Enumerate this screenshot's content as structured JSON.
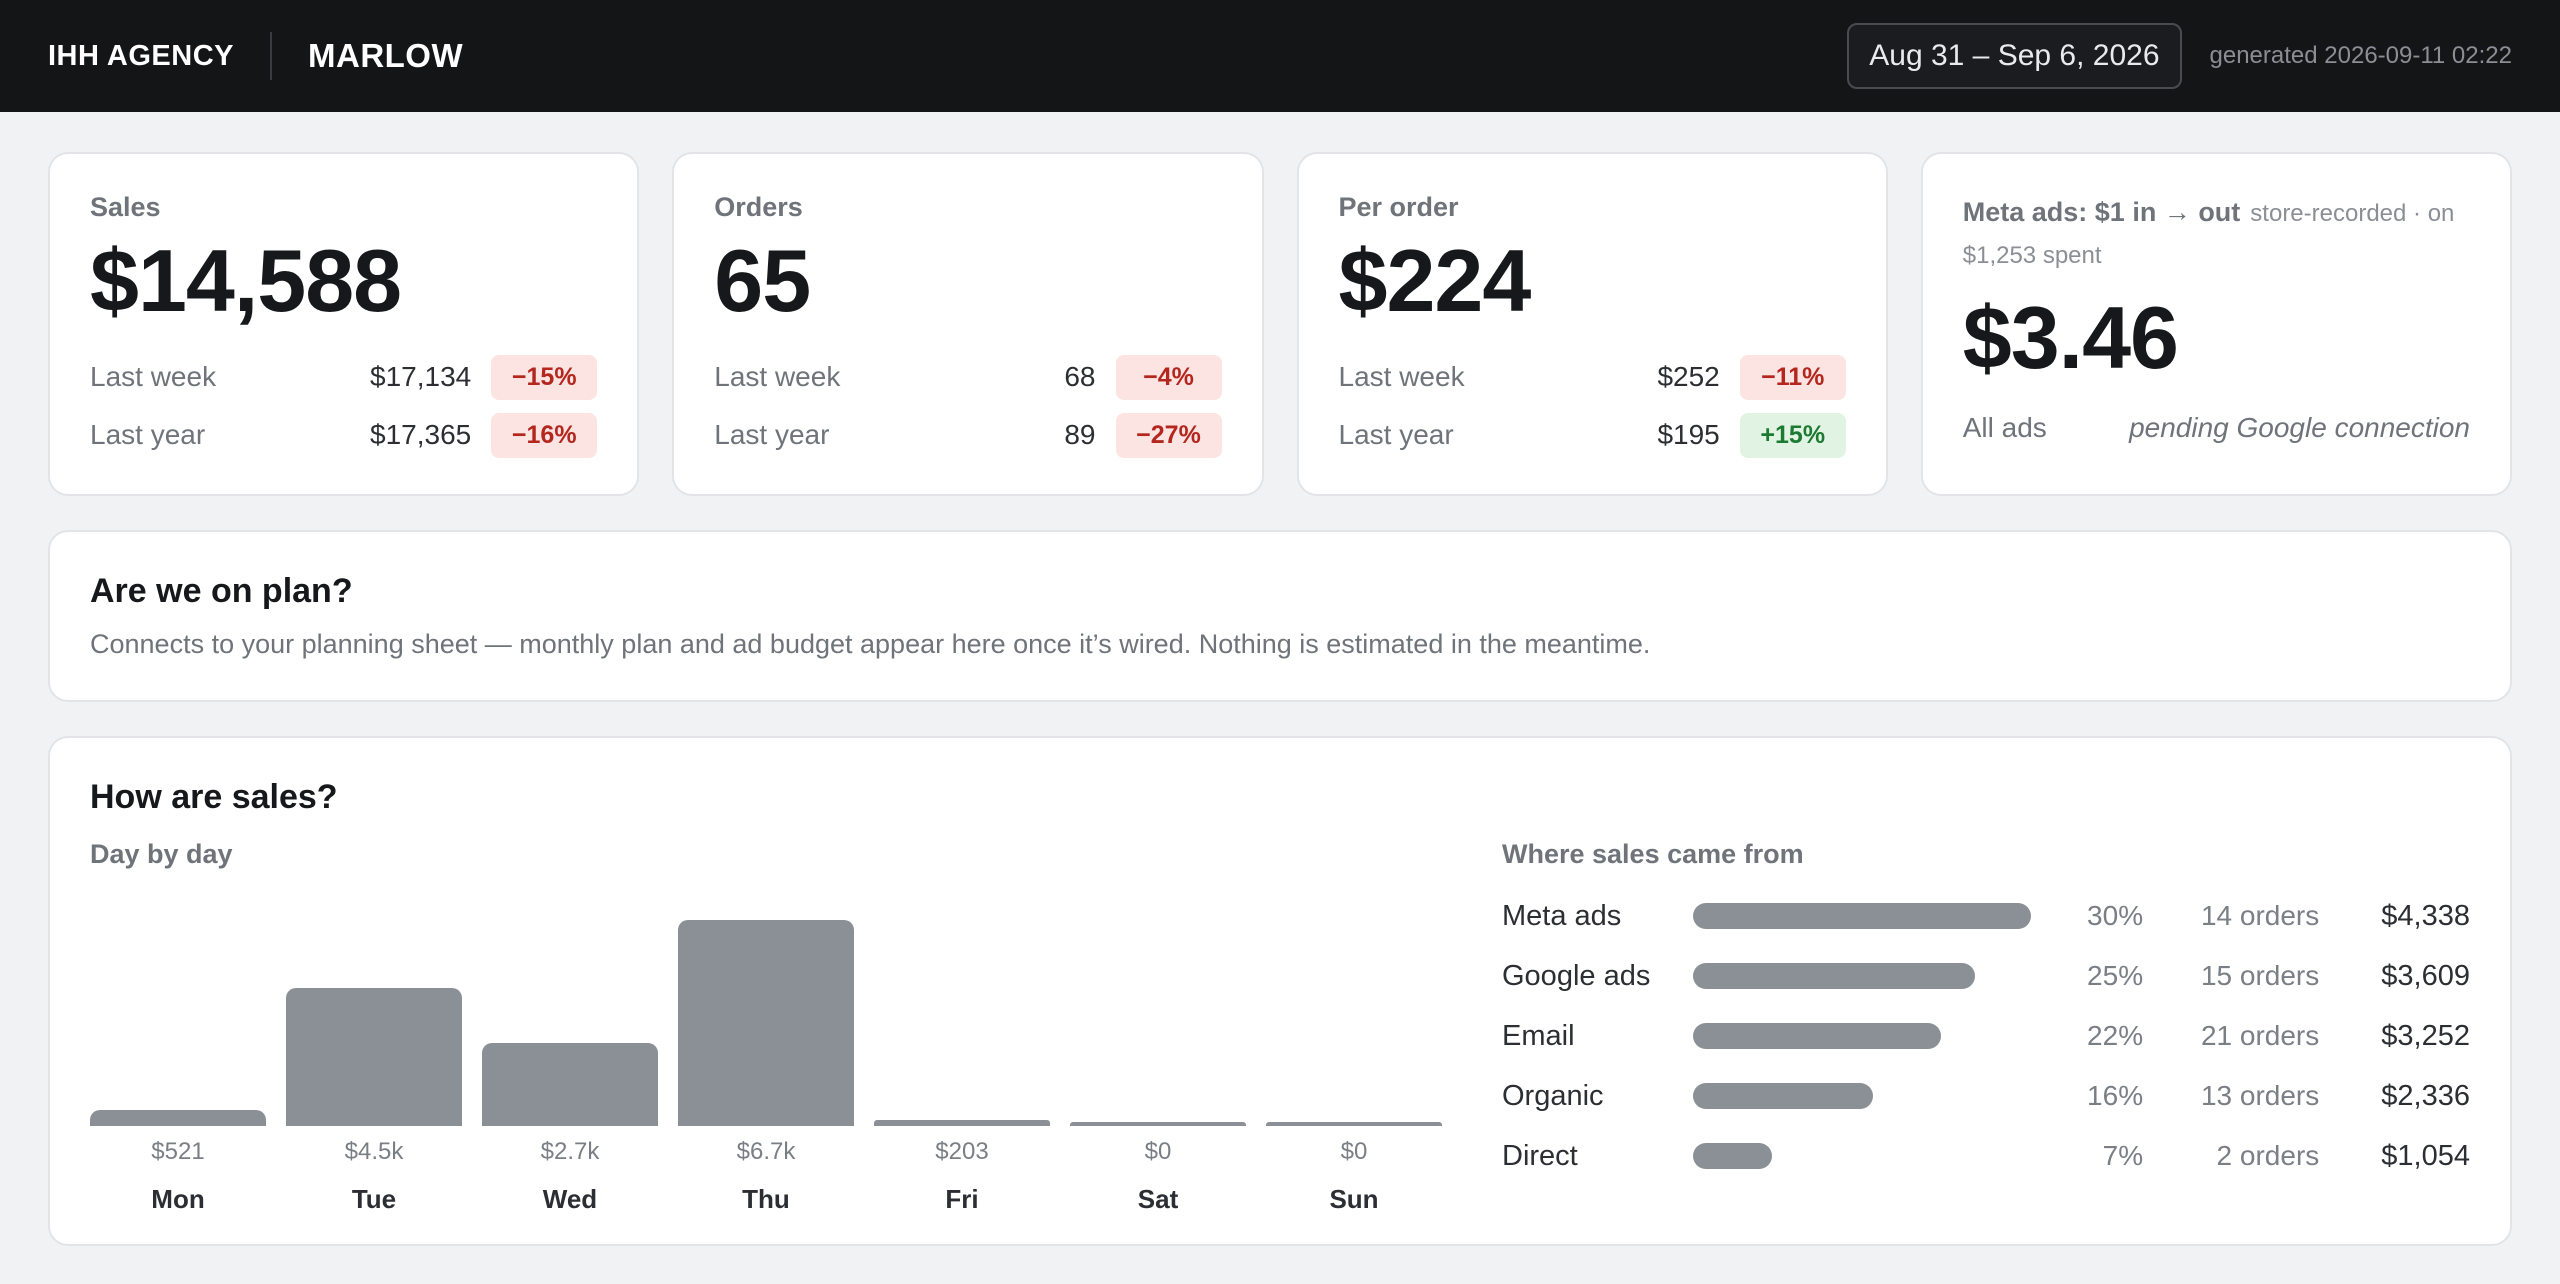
{
  "header": {
    "brand": "IHH AGENCY",
    "client": "MARLOW",
    "date_range": "Aug 31 – Sep 6, 2026",
    "generated": "generated 2026-09-11 02:22"
  },
  "kpis": [
    {
      "label": "Sales",
      "value": "$14,588",
      "rows": [
        {
          "label": "Last week",
          "value": "$17,134",
          "delta": "−15%",
          "tone": "neg"
        },
        {
          "label": "Last year",
          "value": "$17,365",
          "delta": "−16%",
          "tone": "neg"
        }
      ]
    },
    {
      "label": "Orders",
      "value": "65",
      "rows": [
        {
          "label": "Last week",
          "value": "68",
          "delta": "−4%",
          "tone": "neg"
        },
        {
          "label": "Last year",
          "value": "89",
          "delta": "−27%",
          "tone": "neg"
        }
      ]
    },
    {
      "label": "Per order",
      "value": "$224",
      "rows": [
        {
          "label": "Last week",
          "value": "$252",
          "delta": "−11%",
          "tone": "neg"
        },
        {
          "label": "Last year",
          "value": "$195",
          "delta": "+15%",
          "tone": "pos"
        }
      ]
    }
  ],
  "meta_card": {
    "title": "Meta ads: $1 in → out",
    "note": "store-recorded · on $1,253 spent",
    "value": "$3.46",
    "all_ads_label": "All ads",
    "all_ads_status": "pending Google connection"
  },
  "plan": {
    "title": "Are we on plan?",
    "text": "Connects to your planning sheet — monthly plan and ad budget appear here once it’s wired. Nothing is estimated in the meantime."
  },
  "sales": {
    "title": "How are sales?",
    "daily_title": "Day by day",
    "sources_title": "Where sales came from"
  },
  "chart_data": [
    {
      "type": "bar",
      "title": "Day by day",
      "categories": [
        "Mon",
        "Tue",
        "Wed",
        "Thu",
        "Fri",
        "Sat",
        "Sun"
      ],
      "values": [
        521,
        4500,
        2700,
        6700,
        203,
        0,
        0
      ],
      "value_labels": [
        "$521",
        "$4.5k",
        "$2.7k",
        "$6.7k",
        "$203",
        "$0",
        "$0"
      ],
      "grid": false
    },
    {
      "type": "bar",
      "title": "Where sales came from",
      "orientation": "horizontal",
      "categories": [
        "Meta ads",
        "Google ads",
        "Email",
        "Organic",
        "Direct"
      ],
      "values": [
        30,
        25,
        22,
        16,
        7
      ],
      "pct_labels": [
        "30%",
        "25%",
        "22%",
        "16%",
        "7%"
      ],
      "orders": [
        "14 orders",
        "15 orders",
        "21 orders",
        "13 orders",
        "2 orders"
      ],
      "amounts": [
        "$4,338",
        "$3,609",
        "$3,252",
        "$2,336",
        "$1,054"
      ]
    }
  ],
  "colors": {
    "topbar": "#141517",
    "bar": "#8b9097",
    "neg_bg": "#fbe4e2",
    "neg_text": "#b4271f",
    "pos_bg": "#e1f4e4",
    "pos_text": "#1d7a33"
  }
}
